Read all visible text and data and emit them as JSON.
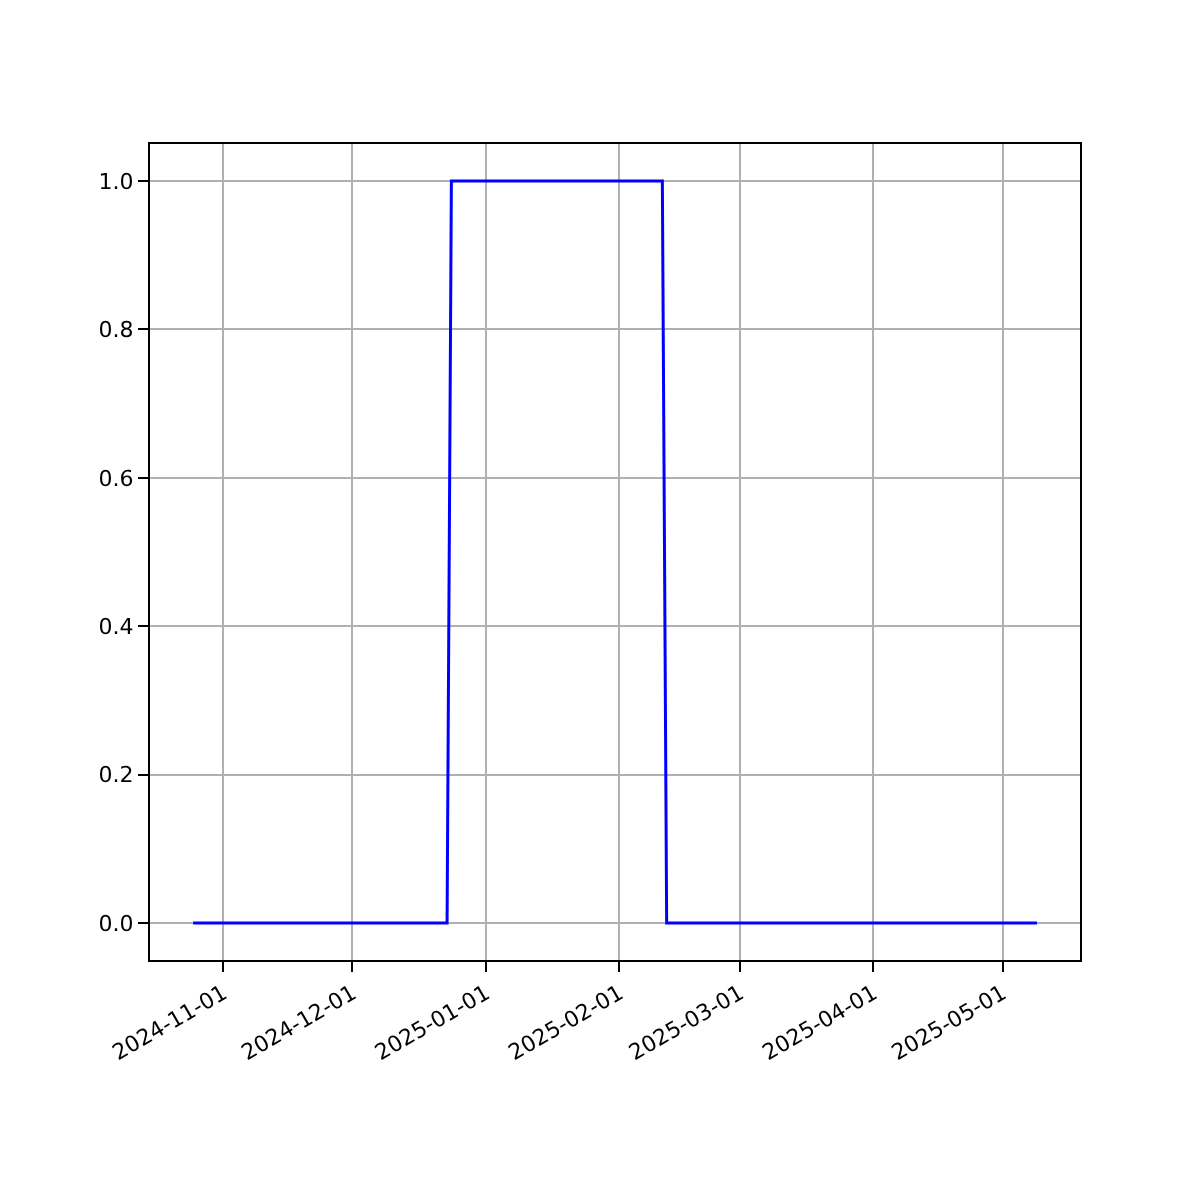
{
  "chart_data": {
    "type": "line",
    "x": [
      "2024-10-25",
      "2024-12-23",
      "2024-12-24",
      "2025-02-11",
      "2025-02-12",
      "2025-05-09"
    ],
    "series": [
      {
        "color": "#0000ff",
        "values": [
          0,
          0,
          1,
          1,
          0,
          0
        ]
      }
    ],
    "xlim": [
      "2024-10-15",
      "2025-05-19"
    ],
    "xticks": [
      "2024-11-01",
      "2024-12-01",
      "2025-01-01",
      "2025-02-01",
      "2025-03-01",
      "2025-04-01",
      "2025-05-01"
    ],
    "ylim": [
      -0.05,
      1.05
    ],
    "yticks": [
      {
        "value": 0,
        "label": "0.0"
      },
      {
        "value": 0.2,
        "label": "0.2"
      },
      {
        "value": 0.4,
        "label": "0.4"
      },
      {
        "value": 0.6,
        "label": "0.6"
      },
      {
        "value": 0.8,
        "label": "0.8"
      },
      {
        "value": 1,
        "label": "1.0"
      }
    ],
    "grid": true,
    "marker": "none",
    "line_style": "solid"
  }
}
